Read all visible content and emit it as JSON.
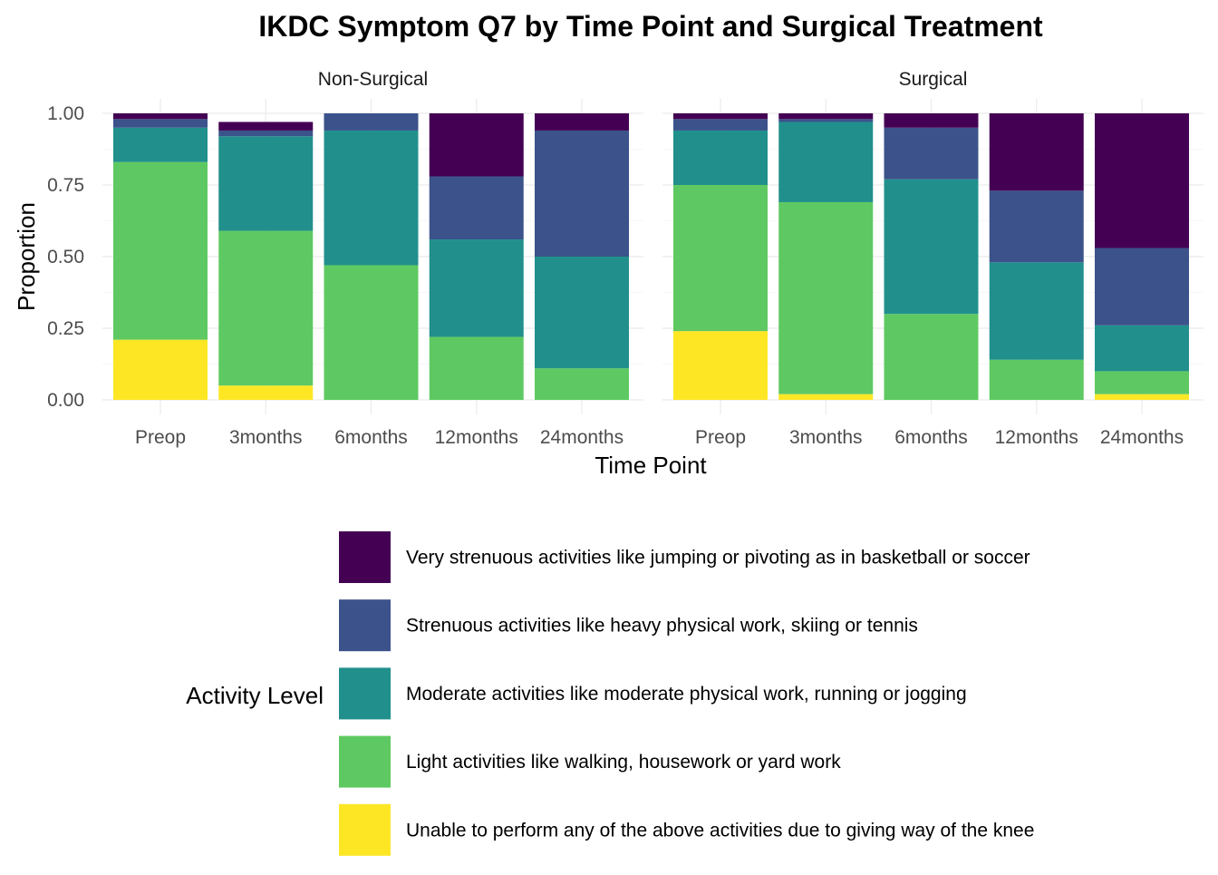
{
  "chart_data": {
    "type": "bar",
    "stacked": true,
    "title": "IKDC Symptom Q7 by Time Point and Surgical Treatment",
    "xlabel": "Time Point",
    "ylabel": "Proportion",
    "ylim": [
      0,
      1
    ],
    "yticks": [
      "0.00",
      "0.25",
      "0.50",
      "0.75",
      "1.00"
    ],
    "grid": true,
    "legend_position": "bottom",
    "legend_title": "Activity Level",
    "categories": [
      "Preop",
      "3months",
      "6months",
      "12months",
      "24months"
    ],
    "levels": [
      {
        "name": "Very strenuous activities like jumping or pivoting as in basketball or soccer",
        "color": "#440154"
      },
      {
        "name": "Strenuous activities like heavy physical work, skiing or tennis",
        "color": "#3b528b"
      },
      {
        "name": "Moderate activities like moderate physical work, running or jogging",
        "color": "#21908c"
      },
      {
        "name": "Light activities like walking, housework or yard work",
        "color": "#5ec962"
      },
      {
        "name": "Unable to perform any of the above activities due to giving way of the knee",
        "color": "#fde725"
      }
    ],
    "panels": [
      {
        "name": "Non-Surgical",
        "values": [
          [
            0.02,
            0.03,
            0.0,
            0.22,
            0.06
          ],
          [
            0.03,
            0.02,
            0.06,
            0.22,
            0.44
          ],
          [
            0.12,
            0.33,
            0.47,
            0.34,
            0.39
          ],
          [
            0.62,
            0.54,
            0.47,
            0.22,
            0.11
          ],
          [
            0.21,
            0.05,
            0.0,
            0.0,
            0.0
          ]
        ]
      },
      {
        "name": "Surgical",
        "values": [
          [
            0.02,
            0.02,
            0.05,
            0.27,
            0.47
          ],
          [
            0.04,
            0.01,
            0.18,
            0.25,
            0.27
          ],
          [
            0.19,
            0.28,
            0.47,
            0.34,
            0.16
          ],
          [
            0.51,
            0.67,
            0.3,
            0.14,
            0.08
          ],
          [
            0.24,
            0.02,
            0.0,
            0.0,
            0.02
          ]
        ]
      }
    ]
  }
}
